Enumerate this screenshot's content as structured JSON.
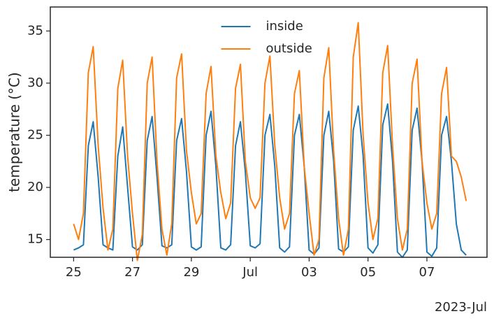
{
  "chart_data": {
    "type": "line",
    "ylabel": "temperature (°C)",
    "x_offset_label": "2023-Jul",
    "x": [
      "2023-06-25T00:00",
      "2023-06-25T04:00",
      "2023-06-25T08:00",
      "2023-06-25T12:00",
      "2023-06-25T16:00",
      "2023-06-25T20:00",
      "2023-06-26T00:00",
      "2023-06-26T04:00",
      "2023-06-26T08:00",
      "2023-06-26T12:00",
      "2023-06-26T16:00",
      "2023-06-26T20:00",
      "2023-06-27T00:00",
      "2023-06-27T04:00",
      "2023-06-27T08:00",
      "2023-06-27T12:00",
      "2023-06-27T16:00",
      "2023-06-27T20:00",
      "2023-06-28T00:00",
      "2023-06-28T04:00",
      "2023-06-28T08:00",
      "2023-06-28T12:00",
      "2023-06-28T16:00",
      "2023-06-28T20:00",
      "2023-06-29T00:00",
      "2023-06-29T04:00",
      "2023-06-29T08:00",
      "2023-06-29T12:00",
      "2023-06-29T16:00",
      "2023-06-29T20:00",
      "2023-06-30T00:00",
      "2023-06-30T04:00",
      "2023-06-30T08:00",
      "2023-06-30T12:00",
      "2023-06-30T16:00",
      "2023-06-30T20:00",
      "2023-07-01T00:00",
      "2023-07-01T04:00",
      "2023-07-01T08:00",
      "2023-07-01T12:00",
      "2023-07-01T16:00",
      "2023-07-01T20:00",
      "2023-07-02T00:00",
      "2023-07-02T04:00",
      "2023-07-02T08:00",
      "2023-07-02T12:00",
      "2023-07-02T16:00",
      "2023-07-02T20:00",
      "2023-07-03T00:00",
      "2023-07-03T04:00",
      "2023-07-03T08:00",
      "2023-07-03T12:00",
      "2023-07-03T16:00",
      "2023-07-03T20:00",
      "2023-07-04T00:00",
      "2023-07-04T04:00",
      "2023-07-04T08:00",
      "2023-07-04T12:00",
      "2023-07-04T16:00",
      "2023-07-04T20:00",
      "2023-07-05T00:00",
      "2023-07-05T04:00",
      "2023-07-05T08:00",
      "2023-07-05T12:00",
      "2023-07-05T16:00",
      "2023-07-05T20:00",
      "2023-07-06T00:00",
      "2023-07-06T04:00",
      "2023-07-06T08:00",
      "2023-07-06T12:00",
      "2023-07-06T16:00",
      "2023-07-06T20:00",
      "2023-07-07T00:00",
      "2023-07-07T04:00",
      "2023-07-07T08:00",
      "2023-07-07T12:00",
      "2023-07-07T16:00",
      "2023-07-07T20:00",
      "2023-07-08T00:00",
      "2023-07-08T04:00",
      "2023-07-08T08:00"
    ],
    "series": [
      {
        "name": "inside",
        "color": "#1f77b4",
        "values": [
          14.0,
          14.2,
          14.5,
          24.0,
          26.3,
          21.0,
          14.5,
          14.2,
          14.0,
          23.0,
          25.8,
          20.0,
          14.3,
          14.0,
          14.5,
          24.5,
          26.8,
          21.0,
          14.4,
          14.2,
          14.5,
          24.5,
          26.6,
          21.5,
          14.3,
          14.0,
          14.3,
          25.0,
          27.3,
          22.0,
          14.2,
          14.0,
          14.5,
          24.0,
          26.3,
          21.5,
          14.4,
          14.2,
          14.6,
          25.0,
          27.0,
          22.0,
          14.2,
          13.8,
          14.3,
          25.0,
          27.0,
          22.0,
          14.0,
          13.6,
          14.2,
          25.0,
          27.3,
          22.5,
          14.1,
          13.8,
          14.3,
          25.5,
          27.8,
          23.0,
          14.2,
          13.7,
          14.5,
          26.0,
          28.0,
          22.5,
          13.8,
          13.3,
          14.0,
          25.5,
          27.6,
          22.5,
          13.8,
          13.4,
          14.2,
          25.0,
          26.8,
          22.5,
          16.5,
          14.0,
          13.5
        ]
      },
      {
        "name": "outside",
        "color": "#ff7f0e",
        "values": [
          16.5,
          15.0,
          17.5,
          31.0,
          33.5,
          24.0,
          18.0,
          14.0,
          16.0,
          29.5,
          32.2,
          23.0,
          17.5,
          13.0,
          15.5,
          30.0,
          32.5,
          22.5,
          16.0,
          13.5,
          16.5,
          30.5,
          32.8,
          23.5,
          19.5,
          16.5,
          17.5,
          29.0,
          31.6,
          23.0,
          19.5,
          17.0,
          18.5,
          29.5,
          31.8,
          22.5,
          19.0,
          18.0,
          19.0,
          30.0,
          32.6,
          24.0,
          19.0,
          16.0,
          17.5,
          29.0,
          31.2,
          22.0,
          17.5,
          13.5,
          15.0,
          30.5,
          33.4,
          23.5,
          17.0,
          13.5,
          16.0,
          32.5,
          35.8,
          25.0,
          18.5,
          15.0,
          17.0,
          31.0,
          33.6,
          24.0,
          17.0,
          14.0,
          16.0,
          30.0,
          32.3,
          22.5,
          18.5,
          16.0,
          17.5,
          29.0,
          31.5,
          23.0,
          22.5,
          21.0,
          18.7
        ]
      }
    ],
    "xlim": [
      "2023-06-24T05:00",
      "2023-07-09T01:00"
    ],
    "xticks": [
      {
        "value": "2023-06-25T00:00",
        "label": "25"
      },
      {
        "value": "2023-06-27T00:00",
        "label": "27"
      },
      {
        "value": "2023-06-29T00:00",
        "label": "29"
      },
      {
        "value": "2023-07-01T00:00",
        "label": "Jul"
      },
      {
        "value": "2023-07-03T00:00",
        "label": "03"
      },
      {
        "value": "2023-07-05T00:00",
        "label": "05"
      },
      {
        "value": "2023-07-07T00:00",
        "label": "07"
      }
    ],
    "ylim": [
      13.3,
      37.3
    ],
    "yticks": [
      15,
      20,
      25,
      30,
      35
    ],
    "grid": false,
    "legend": "upper center"
  }
}
